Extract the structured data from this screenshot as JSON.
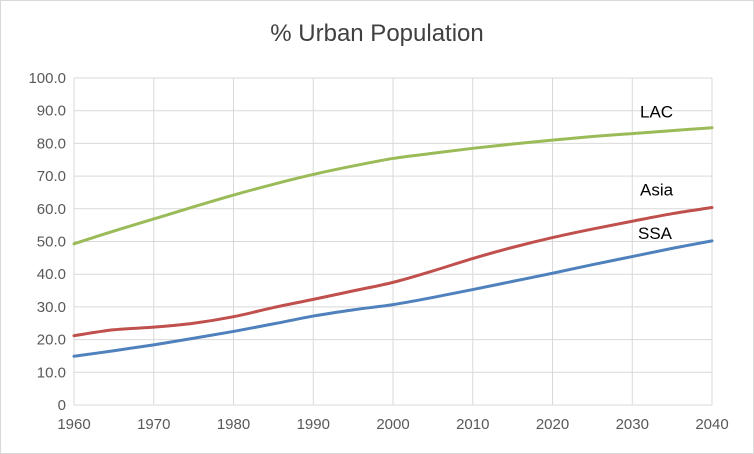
{
  "chart_data": {
    "type": "line",
    "title": "% Urban Population",
    "xlabel": "",
    "ylabel": "",
    "x": [
      1960,
      1965,
      1970,
      1975,
      1980,
      1985,
      1990,
      1995,
      2000,
      2005,
      2010,
      2015,
      2020,
      2025,
      2030,
      2035,
      2040
    ],
    "xticks": [
      "1960",
      "1970",
      "1980",
      "1990",
      "2000",
      "2010",
      "2020",
      "2030",
      "2040"
    ],
    "yticks": [
      "0",
      "10.0",
      "20.0",
      "30.0",
      "40.0",
      "50.0",
      "60.0",
      "70.0",
      "80.0",
      "90.0",
      "100.0"
    ],
    "ylim": [
      0,
      100
    ],
    "xlim": [
      1960,
      2040
    ],
    "grid": true,
    "legend": "none",
    "series": [
      {
        "name": "LAC",
        "color": "#9bbb59",
        "values": [
          49.3,
          53.2,
          56.9,
          60.6,
          64.2,
          67.5,
          70.5,
          73.1,
          75.4,
          77.0,
          78.5,
          79.8,
          81.0,
          82.1,
          83.0,
          83.9,
          84.8
        ]
      },
      {
        "name": "Asia",
        "color": "#c0504d",
        "values": [
          21.2,
          23.0,
          23.8,
          25.0,
          27.0,
          29.8,
          32.3,
          34.9,
          37.5,
          41.0,
          44.8,
          48.2,
          51.2,
          53.8,
          56.2,
          58.5,
          60.4
        ]
      },
      {
        "name": "SSA",
        "color": "#4f81bd",
        "values": [
          14.9,
          16.6,
          18.4,
          20.4,
          22.5,
          24.8,
          27.2,
          29.1,
          30.7,
          32.9,
          35.3,
          37.8,
          40.3,
          42.9,
          45.4,
          47.9,
          50.2
        ]
      }
    ]
  }
}
